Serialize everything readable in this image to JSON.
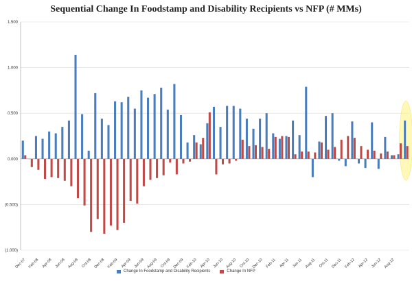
{
  "chart_data": {
    "type": "bar",
    "title": "Sequential Change In Foodstamp and Disability Recipients vs NFP (# MMs)",
    "ylim": [
      -1.0,
      1.5
    ],
    "yticks": [
      "1.500",
      "1.000",
      "0.500",
      "0.000",
      "(0.500)",
      "(1.000)"
    ],
    "ytick_values": [
      1.5,
      1.0,
      0.5,
      0.0,
      -0.5,
      -1.0
    ],
    "grid": true,
    "legend_position": "bottom-center",
    "highlight_last": true,
    "xtick_labels": [
      "Dec-07",
      "Feb-08",
      "Apr-08",
      "Jun-08",
      "Aug-08",
      "Oct-08",
      "Dec-08",
      "Feb-09",
      "Apr-09",
      "Jun-09",
      "Aug-09",
      "Oct-09",
      "Dec-09",
      "Feb-10",
      "Apr-10",
      "Jun-10",
      "Aug-10",
      "Oct-10",
      "Dec-10",
      "Feb-11",
      "Apr-11",
      "Jun-11",
      "Aug-11",
      "Oct-11",
      "Dec-11",
      "Feb-12",
      "Apr-12",
      "Jun-12",
      "Aug-12"
    ],
    "series": [
      {
        "name": "Change In Foodstamp and Disability Recipients",
        "color": "#4a7ebb",
        "values": [
          0.2,
          0.0,
          0.25,
          0.22,
          0.3,
          0.28,
          0.35,
          0.42,
          1.14,
          0.49,
          0.09,
          0.72,
          0.44,
          0.37,
          0.63,
          0.62,
          0.68,
          0.55,
          0.75,
          0.67,
          0.71,
          0.78,
          0.54,
          0.82,
          0.48,
          0.18,
          0.26,
          0.16,
          0.39,
          0.57,
          0.35,
          0.58,
          0.58,
          0.55,
          0.44,
          0.33,
          0.44,
          0.5,
          0.28,
          0.22,
          0.25,
          0.42,
          0.26,
          0.79,
          -0.2,
          0.19,
          0.47,
          0.5,
          -0.02,
          -0.08,
          0.41,
          -0.05,
          -0.1,
          0.4,
          -0.11,
          0.24,
          0.04,
          0.05,
          0.42
        ]
      },
      {
        "name": "Change In NFP",
        "color": "#be4b48",
        "values": [
          0.04,
          -0.09,
          -0.12,
          -0.22,
          -0.2,
          -0.21,
          -0.24,
          -0.3,
          -0.43,
          -0.51,
          -0.8,
          -0.66,
          -0.82,
          -0.73,
          -0.78,
          -0.7,
          -0.46,
          -0.49,
          -0.3,
          -0.23,
          -0.21,
          -0.18,
          -0.04,
          -0.17,
          -0.05,
          -0.03,
          0.18,
          0.23,
          0.51,
          -0.17,
          -0.06,
          -0.05,
          -0.02,
          0.21,
          0.14,
          0.15,
          0.13,
          0.11,
          0.24,
          0.25,
          0.24,
          0.05,
          0.08,
          0.08,
          0.07,
          0.18,
          0.1,
          0.13,
          0.21,
          0.25,
          0.23,
          0.14,
          0.1,
          0.09,
          0.06,
          0.08,
          0.04,
          0.17,
          0.14
        ]
      }
    ]
  }
}
